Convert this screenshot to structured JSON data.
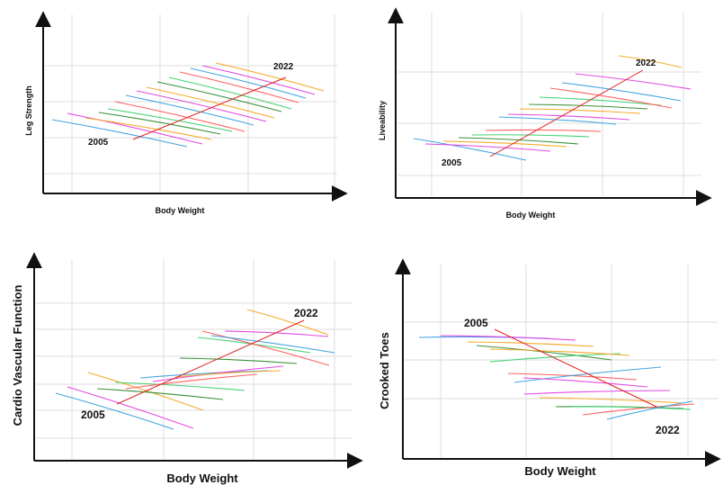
{
  "chart_data": [
    {
      "type": "line",
      "xlabel": "Body Weight",
      "ylabel": "Leg Strength",
      "annotations": [
        "2005",
        "2022"
      ],
      "grid": true,
      "trend": {
        "from": "2005",
        "to": "2022"
      }
    },
    {
      "type": "line",
      "xlabel": "Body Weight",
      "ylabel": "Liveability",
      "annotations": [
        "2005",
        "2022"
      ],
      "grid": true,
      "trend": {
        "from": "2005",
        "to": "2022"
      }
    },
    {
      "type": "line",
      "xlabel": "Body Weight",
      "ylabel": "Cardio Vascular Function",
      "annotations": [
        "2005",
        "2022"
      ],
      "grid": true,
      "trend": {
        "from": "2005",
        "to": "2022"
      }
    },
    {
      "type": "line",
      "xlabel": "Body Weight",
      "ylabel": "Crooked Toes",
      "annotations": [
        "2005",
        "2022"
      ],
      "grid": true,
      "trend": {
        "from": "2005",
        "to": "2022"
      }
    }
  ],
  "colors": {
    "trend": "#e02020",
    "series_palette": [
      "#3aa0e0",
      "#e040e0",
      "#f5a623",
      "#2e8b2e",
      "#3cd070",
      "#ff5a5a"
    ]
  }
}
